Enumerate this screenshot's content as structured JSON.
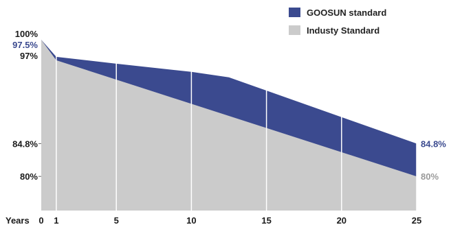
{
  "chart_data": {
    "type": "area",
    "x_label": "Years",
    "x_ticks": [
      "0",
      "1",
      "5",
      "10",
      "15",
      "20",
      "25"
    ],
    "x_tick_values": [
      0,
      1,
      5,
      10,
      15,
      20,
      25
    ],
    "x_range": [
      0,
      25
    ],
    "y_range": [
      75,
      100
    ],
    "y_ticks": [
      {
        "label": "100%",
        "value": 100,
        "color": "#1a1a1a"
      },
      {
        "label": "97.5%",
        "value": 97.5,
        "color": "#3b4a8f"
      },
      {
        "label": "97%",
        "value": 97,
        "color": "#1a1a1a"
      },
      {
        "label": "84.8%",
        "value": 84.8,
        "color": "#1a1a1a"
      },
      {
        "label": "80%",
        "value": 80,
        "color": "#1a1a1a"
      }
    ],
    "series": [
      {
        "name": "GOOSUN standard",
        "color": "#3b4a8f",
        "x": [
          0,
          1,
          5,
          10,
          12.5,
          25
        ],
        "y": [
          100,
          97.5,
          96.5,
          95.3,
          94.5,
          84.8
        ],
        "end_label": "84.8%"
      },
      {
        "name": "Industy Standard",
        "color": "#cbcbcb",
        "x": [
          0,
          1,
          25
        ],
        "y": [
          100,
          97,
          80
        ],
        "end_label": "80%"
      }
    ],
    "grid": "vertical white lines at x ticks",
    "legend_position": "top-right"
  }
}
